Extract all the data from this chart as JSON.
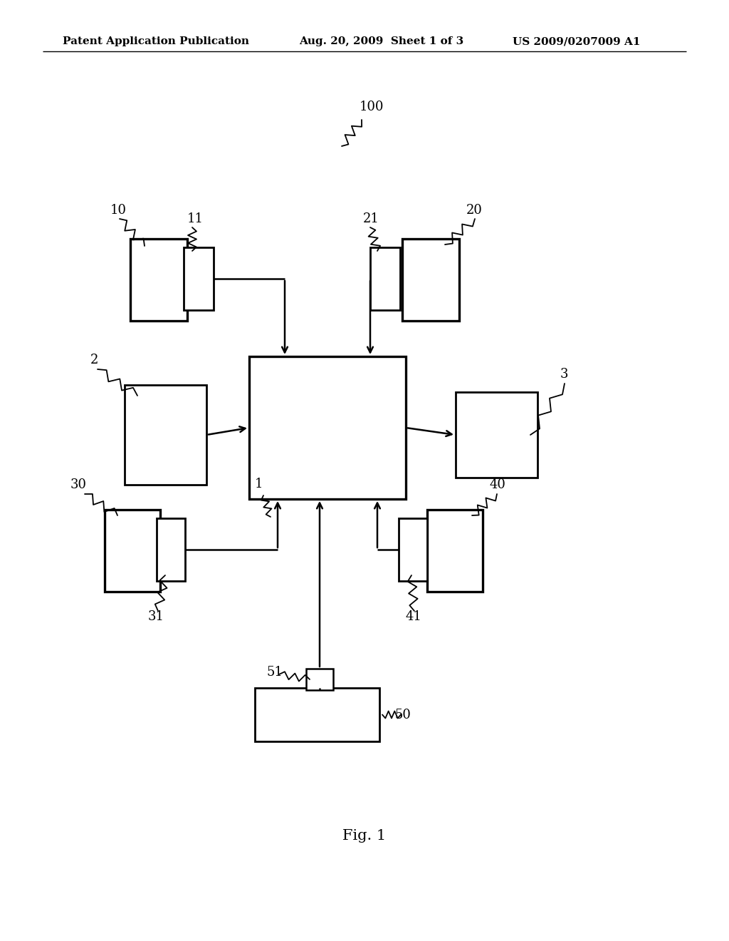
{
  "background_color": "#ffffff",
  "header_left": "Patent Application Publication",
  "header_mid": "Aug. 20, 2009  Sheet 1 of 3",
  "header_right": "US 2009/0207009 A1",
  "footer_label": "Fig. 1"
}
